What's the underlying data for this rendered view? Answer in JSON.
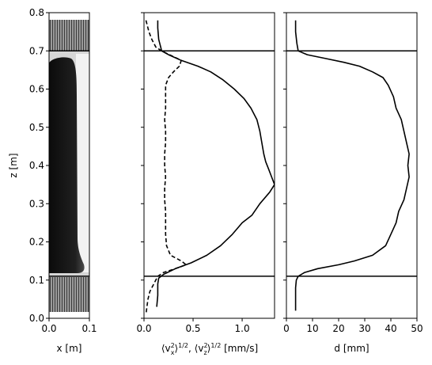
{
  "chart_data": [
    {
      "type": "heatmap",
      "panel": "column-image",
      "xlabel": "x [m]",
      "ylabel": "z [m]",
      "xlim": [
        0.0,
        0.1
      ],
      "ylim": [
        0.0,
        0.8
      ],
      "xticks": [
        "0.0",
        "0.1"
      ],
      "yticks": [
        "0.0",
        "0.1",
        "0.2",
        "0.3",
        "0.4",
        "0.5",
        "0.6",
        "0.7",
        "0.8"
      ],
      "image_z_range": [
        0.02,
        0.78
      ],
      "bed_top_z": 0.7,
      "bed_bottom_z": 0.11,
      "colormap": "grayscale",
      "dense_core_z_range": [
        0.12,
        0.69
      ],
      "dense_core_x_range": [
        0.0,
        0.08
      ]
    },
    {
      "type": "line",
      "panel": "velocity-fluctuations",
      "xlabel": "⟨v²ₓ⟩^1/2, ⟨v²_z⟩^1/2 [mm/s]",
      "xlabel_parts": [
        "⟨v",
        "2",
        "x",
        "⟩",
        "1/2",
        ", ⟨v",
        "2",
        "z",
        "⟩",
        "1/2",
        " [mm/s]"
      ],
      "xlim": [
        0.0,
        1.33
      ],
      "ylim": [
        0.0,
        0.8
      ],
      "xticks": [
        "0.0",
        "0.5",
        "1.0"
      ],
      "hlines": [
        0.7,
        0.11
      ],
      "series": [
        {
          "style": "solid",
          "points": [
            [
              0.14,
              0.78
            ],
            [
              0.14,
              0.76
            ],
            [
              0.15,
              0.73
            ],
            [
              0.17,
              0.71
            ],
            [
              0.18,
              0.7
            ],
            [
              0.25,
              0.69
            ],
            [
              0.38,
              0.675
            ],
            [
              0.55,
              0.66
            ],
            [
              0.68,
              0.645
            ],
            [
              0.8,
              0.625
            ],
            [
              0.92,
              0.6
            ],
            [
              1.02,
              0.575
            ],
            [
              1.09,
              0.55
            ],
            [
              1.15,
              0.52
            ],
            [
              1.18,
              0.49
            ],
            [
              1.2,
              0.46
            ],
            [
              1.22,
              0.43
            ],
            [
              1.24,
              0.41
            ],
            [
              1.27,
              0.39
            ],
            [
              1.3,
              0.37
            ],
            [
              1.33,
              0.35
            ],
            [
              1.28,
              0.33
            ],
            [
              1.18,
              0.3
            ],
            [
              1.1,
              0.27
            ],
            [
              1.0,
              0.25
            ],
            [
              0.9,
              0.22
            ],
            [
              0.78,
              0.19
            ],
            [
              0.64,
              0.165
            ],
            [
              0.48,
              0.145
            ],
            [
              0.32,
              0.13
            ],
            [
              0.2,
              0.115
            ],
            [
              0.15,
              0.105
            ],
            [
              0.14,
              0.09
            ],
            [
              0.14,
              0.06
            ],
            [
              0.13,
              0.03
            ]
          ]
        },
        {
          "style": "dashed",
          "points": [
            [
              0.02,
              0.78
            ],
            [
              0.05,
              0.75
            ],
            [
              0.08,
              0.73
            ],
            [
              0.12,
              0.71
            ],
            [
              0.18,
              0.7
            ],
            [
              0.3,
              0.685
            ],
            [
              0.38,
              0.675
            ],
            [
              0.36,
              0.66
            ],
            [
              0.3,
              0.645
            ],
            [
              0.25,
              0.63
            ],
            [
              0.22,
              0.61
            ],
            [
              0.22,
              0.58
            ],
            [
              0.22,
              0.55
            ],
            [
              0.21,
              0.52
            ],
            [
              0.22,
              0.49
            ],
            [
              0.22,
              0.46
            ],
            [
              0.21,
              0.43
            ],
            [
              0.21,
              0.4
            ],
            [
              0.22,
              0.37
            ],
            [
              0.21,
              0.34
            ],
            [
              0.21,
              0.31
            ],
            [
              0.22,
              0.28
            ],
            [
              0.22,
              0.25
            ],
            [
              0.22,
              0.22
            ],
            [
              0.23,
              0.19
            ],
            [
              0.27,
              0.165
            ],
            [
              0.38,
              0.15
            ],
            [
              0.43,
              0.14
            ],
            [
              0.32,
              0.13
            ],
            [
              0.2,
              0.12
            ],
            [
              0.14,
              0.11
            ],
            [
              0.1,
              0.09
            ],
            [
              0.06,
              0.07
            ],
            [
              0.04,
              0.05
            ],
            [
              0.03,
              0.03
            ],
            [
              0.02,
              0.01
            ]
          ]
        }
      ]
    },
    {
      "type": "line",
      "panel": "particle-size",
      "xlabel": "d [mm]",
      "xlim": [
        0,
        50
      ],
      "ylim": [
        0.0,
        0.8
      ],
      "xticks": [
        "0",
        "10",
        "20",
        "30",
        "40",
        "50"
      ],
      "hlines": [
        0.7,
        0.11
      ],
      "series": [
        {
          "style": "solid",
          "points": [
            [
              3.5,
              0.78
            ],
            [
              3.5,
              0.75
            ],
            [
              4.0,
              0.72
            ],
            [
              4.5,
              0.7
            ],
            [
              8.0,
              0.69
            ],
            [
              15.0,
              0.68
            ],
            [
              22.0,
              0.67
            ],
            [
              28.0,
              0.66
            ],
            [
              33.0,
              0.645
            ],
            [
              37.0,
              0.63
            ],
            [
              39.0,
              0.61
            ],
            [
              41.0,
              0.58
            ],
            [
              42.0,
              0.55
            ],
            [
              44.0,
              0.52
            ],
            [
              45.0,
              0.49
            ],
            [
              46.0,
              0.46
            ],
            [
              47.0,
              0.43
            ],
            [
              46.5,
              0.4
            ],
            [
              47.0,
              0.37
            ],
            [
              46.0,
              0.34
            ],
            [
              45.0,
              0.31
            ],
            [
              43.0,
              0.28
            ],
            [
              42.0,
              0.25
            ],
            [
              40.0,
              0.22
            ],
            [
              38.0,
              0.19
            ],
            [
              33.0,
              0.165
            ],
            [
              26.0,
              0.15
            ],
            [
              20.0,
              0.14
            ],
            [
              12.0,
              0.13
            ],
            [
              7.0,
              0.12
            ],
            [
              4.5,
              0.11
            ],
            [
              3.8,
              0.1
            ],
            [
              3.5,
              0.08
            ],
            [
              3.5,
              0.05
            ],
            [
              3.5,
              0.02
            ]
          ]
        }
      ]
    }
  ]
}
